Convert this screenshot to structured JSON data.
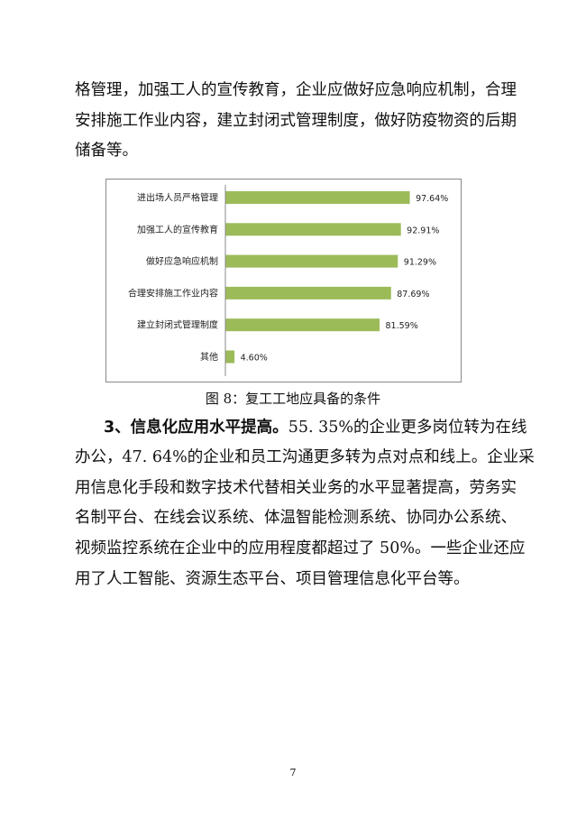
{
  "top_paragraph": {
    "lines": [
      "格管理，加强工人的宣传教育，企业应做好应急响应机制，合理",
      "安排施工作业内容，建立封闭式管理制度，做好防疫物资的后期",
      "储备等。"
    ]
  },
  "chart_data": {
    "type": "bar",
    "orientation": "horizontal",
    "categories": [
      "进出场人员严格管理",
      "加强工人的宣传教育",
      "做好应急响应机制",
      "合理安排施工作业内容",
      "建立封闭式管理制度",
      "其他"
    ],
    "values": [
      97.64,
      92.91,
      91.29,
      87.69,
      81.59,
      4.6
    ],
    "value_labels": [
      "97.64%",
      "92.91%",
      "91.29%",
      "87.69%",
      "81.59%",
      "4.60%"
    ],
    "bar_color": "#9bbb59",
    "grid": false,
    "legend": "none"
  },
  "caption": "图 8：复工工地应具备的条件",
  "section": {
    "heading": "3、信息化应用水平提高。",
    "lines": [
      "55. 35%的企业更多岗位转为在线",
      "办公，47. 64%的企业和员工沟通更多转为点对点和线上。企业采",
      "用信息化手段和数字技术代替相关业务的水平显著提高，劳务实",
      "名制平台、在线会议系统、体温智能检测系统、协同办公系统、",
      "视频监控系统在企业中的应用程度都超过了 50%。一些企业还应",
      "用了人工智能、资源生态平台、项目管理信息化平台等。"
    ]
  },
  "page_number": "7"
}
